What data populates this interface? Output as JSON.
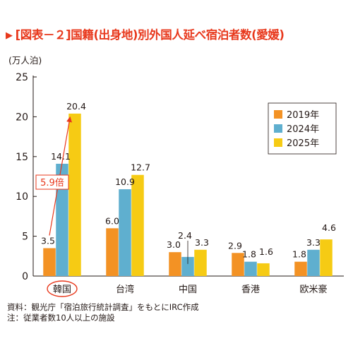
{
  "title": "[図表－２]国籍(出身地)別外国人延べ宿泊者数(愛媛)",
  "notes": [
    "資料：観光庁「宿泊旅行統計調査」をもとにIRC作成",
    "注：従業者数10人以上の施設"
  ],
  "chart_data": {
    "type": "bar",
    "title": "[図表－２]国籍(出身地)別外国人延べ宿泊者数(愛媛)",
    "ylabel": "(万人泊)",
    "ylim": [
      0,
      25
    ],
    "yticks": [
      0,
      5,
      10,
      15,
      20,
      25
    ],
    "grid": false,
    "legend_position": "top-right",
    "categories": [
      "韓国",
      "台湾",
      "中国",
      "香港",
      "欧米豪"
    ],
    "highlighted_category": "韓国",
    "series": [
      {
        "name": "2019年",
        "color": "#f39224",
        "values": [
          3.5,
          6.0,
          3.0,
          2.9,
          1.8
        ]
      },
      {
        "name": "2024年",
        "color": "#5fafcf",
        "values": [
          14.1,
          10.9,
          2.4,
          1.8,
          3.3
        ]
      },
      {
        "name": "2025年",
        "color": "#f6cb14",
        "values": [
          20.4,
          12.7,
          3.3,
          1.6,
          4.6
        ]
      }
    ],
    "annotation": {
      "text": "5.9倍",
      "category": "韓国",
      "from_value": 3.5,
      "to_value": 20.4,
      "color": "#e8381c"
    }
  }
}
